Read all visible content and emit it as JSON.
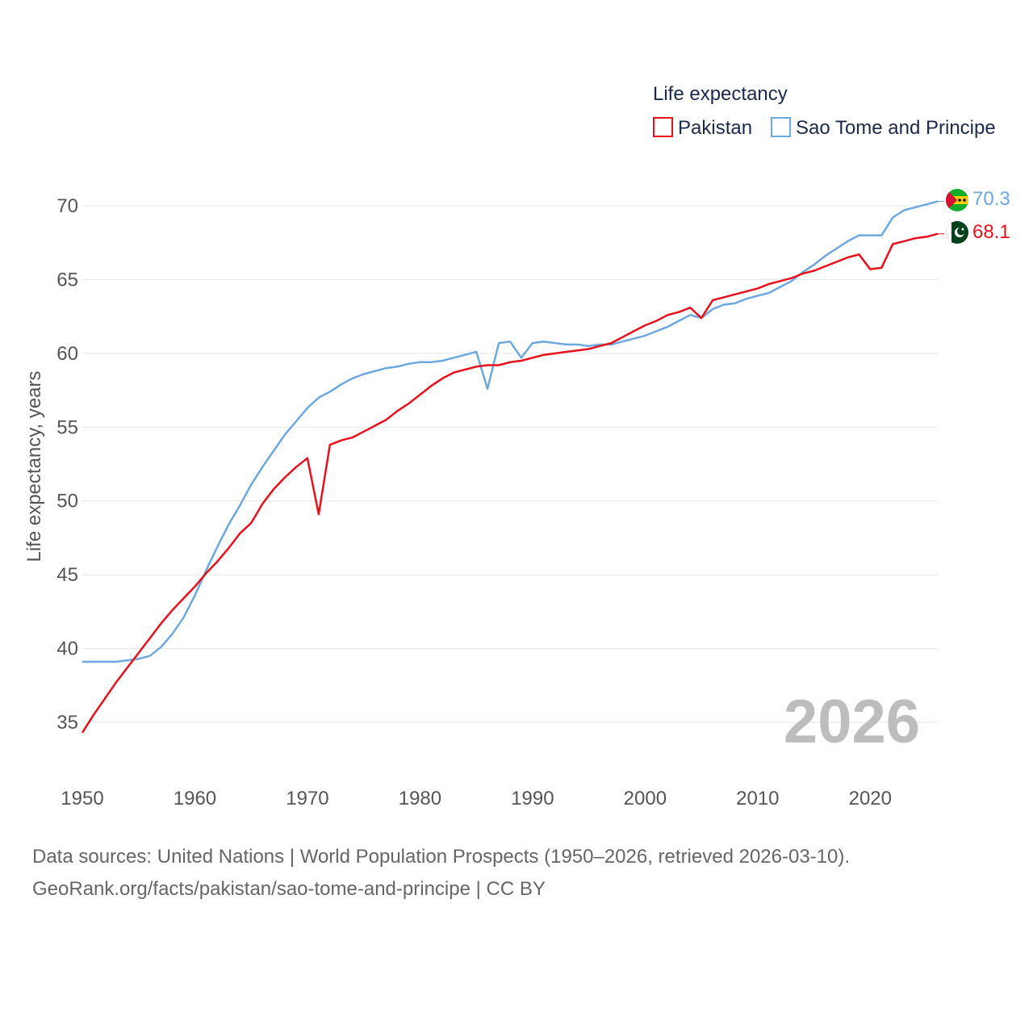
{
  "chart_data": {
    "type": "line",
    "legend_title": "Life expectancy",
    "ylabel": "Life expectancy, years",
    "xlabel": "",
    "xlim": [
      1950,
      2026
    ],
    "ylim": [
      32.5,
      72.5
    ],
    "xticks": [
      1950,
      1960,
      1970,
      1980,
      1990,
      2000,
      2010,
      2020
    ],
    "yticks": [
      35,
      40,
      45,
      50,
      55,
      60,
      65,
      70
    ],
    "grid": true,
    "legend_position": "top-right",
    "current_year": "2026",
    "x": [
      1950,
      1951,
      1952,
      1953,
      1954,
      1955,
      1956,
      1957,
      1958,
      1959,
      1960,
      1961,
      1962,
      1963,
      1964,
      1965,
      1966,
      1967,
      1968,
      1969,
      1970,
      1971,
      1972,
      1973,
      1974,
      1975,
      1976,
      1977,
      1978,
      1979,
      1980,
      1981,
      1982,
      1983,
      1984,
      1985,
      1986,
      1987,
      1988,
      1989,
      1990,
      1991,
      1992,
      1993,
      1994,
      1995,
      1996,
      1997,
      1998,
      1999,
      2000,
      2001,
      2002,
      2003,
      2004,
      2005,
      2006,
      2007,
      2008,
      2009,
      2010,
      2011,
      2012,
      2013,
      2014,
      2015,
      2016,
      2017,
      2018,
      2019,
      2020,
      2021,
      2022,
      2023,
      2024,
      2025,
      2026
    ],
    "series": [
      {
        "name": "Pakistan",
        "color": "#e8101a",
        "end_label": "68.1",
        "values": [
          34.3,
          35.5,
          36.6,
          37.7,
          38.7,
          39.7,
          40.7,
          41.7,
          42.6,
          43.4,
          44.2,
          45.1,
          45.9,
          46.8,
          47.8,
          48.5,
          49.8,
          50.8,
          51.6,
          52.3,
          52.9,
          49.1,
          53.8,
          54.1,
          54.3,
          54.7,
          55.1,
          55.5,
          56.1,
          56.6,
          57.2,
          57.8,
          58.3,
          58.7,
          58.9,
          59.1,
          59.2,
          59.2,
          59.4,
          59.5,
          59.7,
          59.9,
          60.0,
          60.1,
          60.2,
          60.3,
          60.5,
          60.7,
          61.1,
          61.5,
          61.9,
          62.2,
          62.6,
          62.8,
          63.1,
          62.4,
          63.6,
          63.8,
          64.0,
          64.2,
          64.4,
          64.7,
          64.9,
          65.1,
          65.4,
          65.6,
          65.9,
          66.2,
          66.5,
          66.7,
          65.7,
          65.8,
          67.4,
          67.6,
          67.8,
          67.9,
          68.1
        ]
      },
      {
        "name": "Sao Tome and Principe",
        "color": "#6ea8e0",
        "end_label": "70.3",
        "values": [
          39.1,
          39.1,
          39.1,
          39.1,
          39.2,
          39.3,
          39.5,
          40.1,
          41.0,
          42.1,
          43.6,
          45.3,
          46.9,
          48.4,
          49.7,
          51.1,
          52.3,
          53.4,
          54.5,
          55.4,
          56.3,
          57.0,
          57.4,
          57.9,
          58.3,
          58.6,
          58.8,
          59.0,
          59.1,
          59.3,
          59.4,
          59.4,
          59.5,
          59.7,
          59.9,
          60.1,
          57.6,
          60.7,
          60.8,
          59.7,
          60.7,
          60.8,
          60.7,
          60.6,
          60.6,
          60.5,
          60.6,
          60.6,
          60.8,
          61.0,
          61.2,
          61.5,
          61.8,
          62.2,
          62.6,
          62.4,
          63.0,
          63.3,
          63.4,
          63.7,
          63.9,
          64.1,
          64.5,
          64.9,
          65.5,
          66.0,
          66.6,
          67.1,
          67.6,
          68.0,
          68.0,
          68.0,
          69.2,
          69.7,
          69.9,
          70.1,
          70.3
        ]
      }
    ]
  },
  "source": {
    "line1": "Data sources: United Nations | World Population Prospects (1950–2026, retrieved 2026-03-10).",
    "line2": "GeoRank.org/facts/pakistan/sao-tome-and-principe | CC BY"
  },
  "flags": {
    "pakistan": "pakistan-flag-icon",
    "sao_tome": "sao-tome-flag-icon"
  }
}
